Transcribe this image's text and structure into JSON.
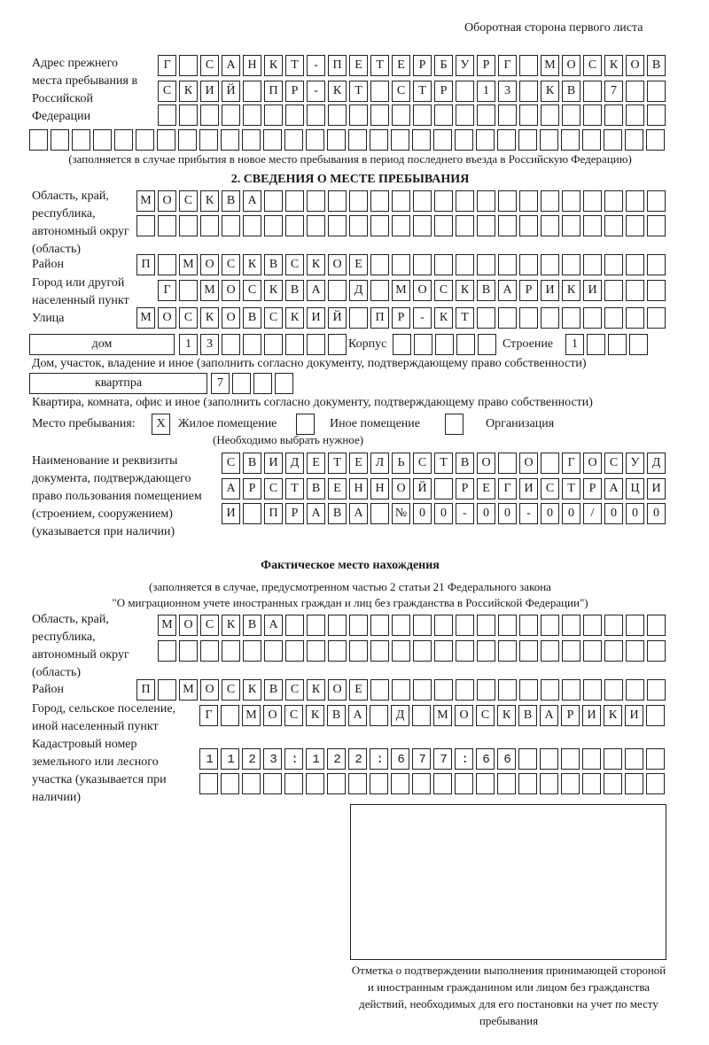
{
  "header": {
    "page_side": "Оборотная сторона первого листа"
  },
  "previous_address": {
    "label": "Адрес прежнего места пребывания в Российской Федерации",
    "rows": [
      "Г САНКТ-ПЕТЕРБУРГ МОСКОВ",
      "СКИЙ ПР-КТ СТР 13 КВ 7  ",
      "                        ",
      "                              "
    ],
    "note": "(заполняется в случае прибытия в новое место пребывания в период последнего въезда в Российскую Федерацию)"
  },
  "section2": {
    "title": "2. СВЕДЕНИЯ О МЕСТЕ ПРЕБЫВАНИЯ",
    "region_label": "Область, край, республика, автономный округ (область)",
    "region_rows": [
      "МОСКВА                   ",
      "                         "
    ],
    "district_label": "Район",
    "district_row": "П МОСКВСКОЕ              ",
    "city_label": "Город или другой населенный пункт",
    "city_row": "Г МОСКВА Д МОСКВАРИКИ   ",
    "street_label": "Улица",
    "street_row": "МОСКОВСКИЙ ПР-КТ         ",
    "house_type": "дом",
    "house_row": "13      ",
    "korpus_label": "Корпус",
    "korpus_row": "     ",
    "building_label": "Строение",
    "building_row": "1   ",
    "house_note": "Дом, участок, владение и иное (заполнить согласно документу, подтверждающему право собственности)",
    "apt_type": "квартпра",
    "apt_row": "7   ",
    "apt_note": "Квартира, комната, офис и иное (заполнить согласно документу, подтверждающему право собственности)",
    "stay_label": "Место пребывания:",
    "stay_options": [
      {
        "label": "Жилое помещение",
        "mark": "X",
        "checked": true
      },
      {
        "label": "Иное помещение",
        "mark": "",
        "checked": false
      },
      {
        "label": "Организация",
        "mark": "",
        "checked": false
      }
    ],
    "stay_note": "(Необходимо выбрать нужное)",
    "document_label": "Наименование и реквизиты документа, подтверждающего право пользования помещением (строением, сооружением) (указывается при наличии)",
    "document_rows": [
      "СВИДЕТЕЛЬСТВО О ГОСУД",
      "АРСТВЕННОЙ РЕГИСТРАЦИ",
      "И ПРАВА №00-00-00/000"
    ]
  },
  "actual": {
    "title": "Фактическое место нахождения",
    "note1": "(заполняется в случае, предусмотренном частью 2 статьи 21 Федерального закона",
    "note2": "\"О миграционном учете иностранных граждан и лиц без гражданства в Российской Федерации\")",
    "region_label": "Область, край, республика, автономный округ (область)",
    "region_rows": [
      "МОСКВА                  ",
      "                        "
    ],
    "district_label": "Район",
    "district_row": "П МОСКВСКОЕ              ",
    "city_label": "Город, сельское поселение, иной населенный пункт",
    "city_row": "Г МОСКВА Д МОСКВАРИКИ ",
    "cadastral_label": "Кадастровый номер земельного или лесного участка (указывается при наличии)",
    "cadastral_rows": [
      "1123:122:677:66       ",
      "                      "
    ]
  },
  "stamp": {
    "caption": "Отметка о подтверждении выполнения принимающей стороной и иностранным гражданином или лицом без гражданства действий, необходимых для его постановки на учет по месту пребывания"
  }
}
